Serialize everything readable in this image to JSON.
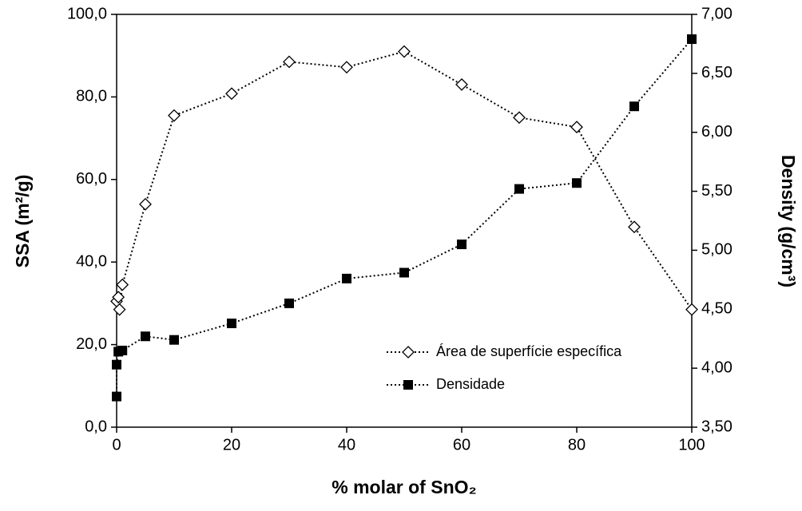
{
  "chart_data": {
    "type": "line",
    "x_label": "% molar of SnO₂",
    "y_label": "SSA (m²/g)",
    "y2_label": "Density (g/cm³)",
    "xlim": [
      0,
      100
    ],
    "xticks": [
      0,
      20,
      40,
      60,
      80,
      100
    ],
    "ylim": [
      0,
      100
    ],
    "yticks": [
      {
        "value": 0,
        "label": "0,0"
      },
      {
        "value": 20,
        "label": "20,0"
      },
      {
        "value": 40,
        "label": "40,0"
      },
      {
        "value": 60,
        "label": "60,0"
      },
      {
        "value": 80,
        "label": "80,0"
      },
      {
        "value": 100,
        "label": "100,0"
      }
    ],
    "y2lim": [
      3.5,
      7.0
    ],
    "y2ticks": [
      {
        "value": 3.5,
        "label": "3,50"
      },
      {
        "value": 4.0,
        "label": "4,00"
      },
      {
        "value": 4.5,
        "label": "4,50"
      },
      {
        "value": 5.0,
        "label": "5,00"
      },
      {
        "value": 5.5,
        "label": "5,50"
      },
      {
        "value": 6.0,
        "label": "6,00"
      },
      {
        "value": 6.5,
        "label": "6,50"
      },
      {
        "value": 7.0,
        "label": "7,00"
      }
    ],
    "legend": "lower right",
    "series": [
      {
        "name": "Área de superfície específica",
        "color": "#000000",
        "marker": "diamond",
        "x": [
          0,
          0.3,
          0.5,
          1,
          5,
          10,
          20,
          30,
          40,
          50,
          60,
          70,
          80,
          90,
          100
        ],
        "values": [
          30.5,
          31.5,
          28.5,
          34.5,
          54,
          75.5,
          80.8,
          88.5,
          87.2,
          91,
          83,
          75,
          72.7,
          48.5,
          28.5
        ]
      },
      {
        "name": "Densidade",
        "color": "#000000",
        "marker": "square",
        "axis": "y2",
        "x": [
          0,
          0,
          0.3,
          1,
          5,
          10,
          20,
          30,
          40,
          50,
          60,
          70,
          80,
          90,
          100
        ],
        "values": [
          3.76,
          4.03,
          4.14,
          4.15,
          4.27,
          4.24,
          4.38,
          4.55,
          4.76,
          4.81,
          5.05,
          5.52,
          5.57,
          6.22,
          6.79
        ]
      }
    ]
  }
}
